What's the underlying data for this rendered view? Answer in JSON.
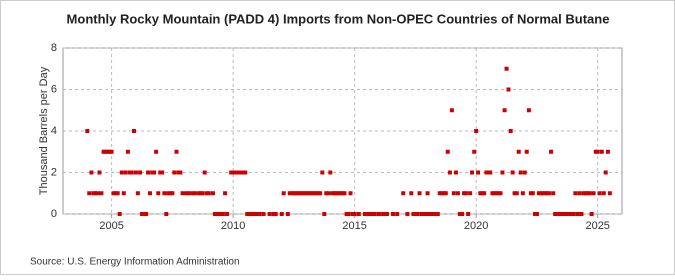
{
  "chart_data": {
    "type": "scatter",
    "title": "Monthly Rocky Mountain (PADD 4) Imports from Non-OPEC Countries of Normal Butane",
    "y_label": "Thousand Barrels per Day",
    "source": "Source: U.S. Energy Information Administration",
    "xlim": [
      2003,
      2026
    ],
    "xticks": [
      2005,
      2010,
      2015,
      2020,
      2025
    ],
    "ylim": [
      0,
      8
    ],
    "yticks": [
      0,
      2,
      4,
      6,
      8
    ],
    "grid": true,
    "series": [
      {
        "name": "Normal Butane Imports",
        "color": "#cc0000",
        "x": [
          2004,
          2004.08,
          2004.17,
          2004.25,
          2004.33,
          2004.42,
          2004.5,
          2004.58,
          2004.67,
          2004.75,
          2004.83,
          2004.92,
          2005,
          2005.08,
          2005.17,
          2005.25,
          2005.33,
          2005.42,
          2005.5,
          2005.58,
          2005.67,
          2005.75,
          2005.83,
          2005.92,
          2006,
          2006.08,
          2006.17,
          2006.25,
          2006.33,
          2006.42,
          2006.5,
          2006.58,
          2006.67,
          2006.75,
          2006.83,
          2006.92,
          2007,
          2007.08,
          2007.17,
          2007.25,
          2007.33,
          2007.42,
          2007.5,
          2007.58,
          2007.67,
          2007.75,
          2007.83,
          2007.92,
          2008,
          2008.08,
          2008.17,
          2008.25,
          2008.33,
          2008.42,
          2008.5,
          2008.58,
          2008.67,
          2008.75,
          2008.83,
          2008.92,
          2009,
          2009.08,
          2009.17,
          2009.25,
          2009.33,
          2009.42,
          2009.5,
          2009.58,
          2009.67,
          2009.75,
          2009.83,
          2009.92,
          2010,
          2010.08,
          2010.17,
          2010.25,
          2010.33,
          2010.42,
          2010.5,
          2010.58,
          2010.67,
          2010.75,
          2010.83,
          2010.92,
          2011,
          2011.08,
          2011.17,
          2011.25,
          2011.33,
          2011.42,
          2011.5,
          2011.58,
          2011.67,
          2011.75,
          2011.83,
          2011.92,
          2012,
          2012.08,
          2012.17,
          2012.25,
          2012.33,
          2012.42,
          2012.5,
          2012.58,
          2012.67,
          2012.75,
          2012.83,
          2012.92,
          2013,
          2013.08,
          2013.17,
          2013.25,
          2013.33,
          2013.42,
          2013.5,
          2013.58,
          2013.67,
          2013.75,
          2013.83,
          2013.92,
          2014,
          2014.08,
          2014.17,
          2014.25,
          2014.33,
          2014.42,
          2014.5,
          2014.58,
          2014.67,
          2014.75,
          2014.83,
          2014.92,
          2015,
          2015.08,
          2015.17,
          2015.25,
          2015.33,
          2015.42,
          2015.5,
          2015.58,
          2015.67,
          2015.75,
          2015.83,
          2015.92,
          2016,
          2016.08,
          2016.17,
          2016.25,
          2016.33,
          2016.42,
          2016.5,
          2016.58,
          2016.67,
          2016.75,
          2016.83,
          2016.92,
          2017,
          2017.08,
          2017.17,
          2017.25,
          2017.33,
          2017.42,
          2017.5,
          2017.58,
          2017.67,
          2017.75,
          2017.83,
          2017.92,
          2018,
          2018.08,
          2018.17,
          2018.25,
          2018.33,
          2018.42,
          2018.5,
          2018.58,
          2018.67,
          2018.75,
          2018.83,
          2018.92,
          2019,
          2019.08,
          2019.17,
          2019.25,
          2019.33,
          2019.42,
          2019.5,
          2019.58,
          2019.67,
          2019.75,
          2019.83,
          2019.92,
          2020,
          2020.08,
          2020.17,
          2020.25,
          2020.33,
          2020.42,
          2020.5,
          2020.58,
          2020.67,
          2020.75,
          2020.83,
          2020.92,
          2021,
          2021.08,
          2021.17,
          2021.25,
          2021.33,
          2021.42,
          2021.5,
          2021.58,
          2021.67,
          2021.75,
          2021.83,
          2021.92,
          2022,
          2022.08,
          2022.17,
          2022.25,
          2022.33,
          2022.42,
          2022.5,
          2022.58,
          2022.67,
          2022.75,
          2022.83,
          2022.92,
          2023,
          2023.08,
          2023.17,
          2023.25,
          2023.33,
          2023.42,
          2023.5,
          2023.58,
          2023.67,
          2023.75,
          2023.83,
          2023.92,
          2024,
          2024.08,
          2024.17,
          2024.25,
          2024.33,
          2024.42,
          2024.5,
          2024.58,
          2024.67,
          2024.75,
          2024.83,
          2024.92,
          2025,
          2025.08,
          2025.17,
          2025.25,
          2025.33,
          2025.42,
          2025.5
        ],
        "values": [
          4,
          1,
          2,
          1,
          1,
          1,
          2,
          1,
          3,
          3,
          3,
          3,
          3,
          1,
          1,
          1,
          0,
          2,
          1,
          2,
          3,
          2,
          2,
          4,
          2,
          1,
          2,
          0,
          0,
          0,
          2,
          1,
          2,
          2,
          3,
          1,
          2,
          2,
          1,
          0,
          1,
          1,
          1,
          2,
          3,
          2,
          2,
          1,
          null,
          1,
          1,
          null,
          1,
          1,
          null,
          1,
          1,
          1,
          2,
          1,
          1,
          null,
          1,
          0,
          0,
          0,
          0,
          0,
          1,
          0,
          null,
          2,
          2,
          2,
          2,
          2,
          2,
          2,
          2,
          0,
          0,
          0,
          0,
          0,
          0,
          0,
          null,
          0,
          null,
          null,
          0,
          null,
          0,
          0,
          null,
          null,
          0,
          1,
          null,
          0,
          1,
          1,
          1,
          1,
          1,
          1,
          1,
          1,
          1,
          1,
          1,
          1,
          1,
          1,
          1,
          1,
          2,
          0,
          1,
          1,
          2,
          1,
          1,
          1,
          1,
          1,
          1,
          1,
          0,
          0,
          1,
          0,
          0,
          null,
          0,
          null,
          null,
          0,
          null,
          0,
          0,
          0,
          0,
          null,
          0,
          null,
          0,
          null,
          0,
          null,
          null,
          0,
          null,
          0,
          null,
          null,
          1,
          null,
          0,
          null,
          1,
          0,
          0,
          0,
          1,
          0,
          0,
          0,
          1,
          0,
          0,
          0,
          0,
          0,
          1,
          1,
          1,
          1,
          3,
          2,
          5,
          1,
          2,
          1,
          0,
          0,
          1,
          1,
          0,
          1,
          2,
          3,
          4,
          2,
          1,
          1,
          1,
          2,
          2,
          2,
          1,
          1,
          1,
          1,
          1,
          2,
          5,
          7,
          6,
          4,
          2,
          1,
          1,
          3,
          2,
          1,
          2,
          3,
          5,
          1,
          1,
          0,
          0,
          1,
          1,
          1,
          1,
          1,
          1,
          3,
          1,
          0,
          0,
          0,
          0,
          0,
          0,
          0,
          0,
          0,
          0,
          1,
          0,
          1,
          0,
          1,
          1,
          1,
          1,
          0,
          1,
          3,
          3,
          1,
          3,
          1,
          2,
          3,
          1
        ]
      }
    ]
  }
}
